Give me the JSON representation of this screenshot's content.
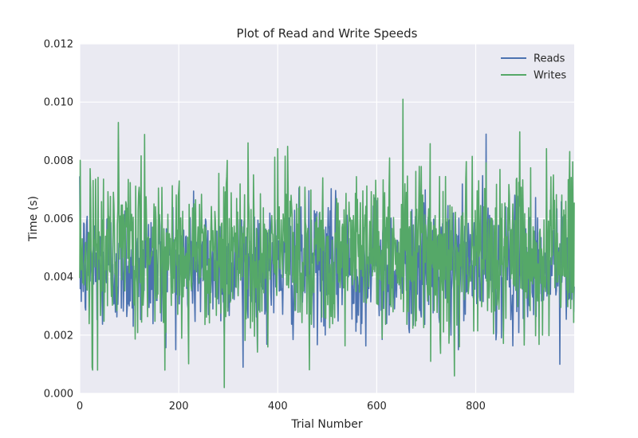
{
  "chart_data": {
    "type": "line",
    "title": "Plot of Read and Write Speeds",
    "xlabel": "Trial Number",
    "ylabel": "Time (s)",
    "xlim": [
      0,
      999
    ],
    "ylim": [
      0,
      0.012
    ],
    "x_ticks": [
      0,
      200,
      400,
      600,
      800
    ],
    "x_tick_labels": [
      "0",
      "200",
      "400",
      "600",
      "800"
    ],
    "y_ticks": [
      0,
      0.002,
      0.004,
      0.006,
      0.008,
      0.01,
      0.012
    ],
    "y_tick_labels": [
      "0.000",
      "0.002",
      "0.004",
      "0.006",
      "0.008",
      "0.010",
      "0.012"
    ],
    "grid": true,
    "legend_position": "top-right",
    "n_points": 1000,
    "series": [
      {
        "name": "Reads",
        "color": "#4c72b0",
        "mean": 0.0044,
        "std": 0.0011,
        "min": 0.0009,
        "max": 0.0089,
        "notable_points": [
          {
            "x": 330,
            "y": 0.0009
          },
          {
            "x": 821,
            "y": 0.0089
          },
          {
            "x": 970,
            "y": 0.001
          },
          {
            "x": 750,
            "y": 0.002
          },
          {
            "x": 620,
            "y": 0.0024
          }
        ]
      },
      {
        "name": "Writes",
        "color": "#55a868",
        "mean": 0.0049,
        "std": 0.0014,
        "min": 0.0002,
        "max": 0.0101,
        "notable_points": [
          {
            "x": 292,
            "y": 0.0002
          },
          {
            "x": 653,
            "y": 0.0101
          },
          {
            "x": 25,
            "y": 0.0009
          },
          {
            "x": 757,
            "y": 0.0006
          },
          {
            "x": 340,
            "y": 0.0086
          },
          {
            "x": 400,
            "y": 0.0084
          },
          {
            "x": 1,
            "y": 0.008
          },
          {
            "x": 990,
            "y": 0.0083
          },
          {
            "x": 709,
            "y": 0.0011
          }
        ]
      }
    ]
  }
}
